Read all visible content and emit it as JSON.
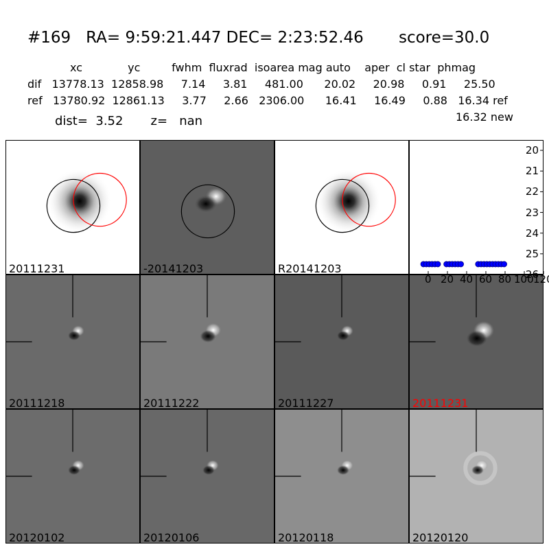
{
  "header": {
    "title": "#169   RA= 9:59:21.447 DEC= 2:23:52.46       score=30.0",
    "columns": "xc             yc         fwhm  fluxrad  isoarea mag auto    aper  cl star  phmag",
    "dif_row": "dif   13778.13  12858.98     7.14     3.81     481.00      20.02     20.98     0.91     25.50",
    "ref_row": "ref   13780.92  12861.13     3.77     2.66   2306.00      16.41     16.49     0.88   16.34 ref",
    "new_line": "16.32 new",
    "dist_line": "dist=  3.52       z=   nan"
  },
  "top_panels": [
    {
      "label": "20111231",
      "bg": "#ffffff",
      "blob": "dark"
    },
    {
      "label": "-20141203",
      "bg": "#5e5e5e",
      "blob": "dipole"
    },
    {
      "label": "R20141203",
      "bg": "#ffffff",
      "blob": "dark"
    }
  ],
  "grid_panels": [
    {
      "label": "20111218",
      "bg": "#6a6a6a",
      "highlight": false
    },
    {
      "label": "20111222",
      "bg": "#7a7a7a",
      "highlight": false
    },
    {
      "label": "20111227",
      "bg": "#5a5a5a",
      "highlight": false
    },
    {
      "label": "20111231",
      "bg": "#5c5c5c",
      "highlight": true
    },
    {
      "label": "20120102",
      "bg": "#6c6c6c",
      "highlight": false
    },
    {
      "label": "20120106",
      "bg": "#686868",
      "highlight": false
    },
    {
      "label": "20120118",
      "bg": "#8e8e8e",
      "highlight": false
    },
    {
      "label": "20120120",
      "bg": "#b2b2b2",
      "highlight": false
    }
  ],
  "colors": {
    "highlight_label": "#ff0000",
    "marker": "#0000ff",
    "circle_red": "#ff0000",
    "circle_black": "#000000"
  },
  "chart_data": {
    "type": "scatter",
    "x": [
      -5,
      -2,
      1,
      4,
      7,
      10,
      19,
      22,
      25,
      28,
      31,
      34,
      52,
      55,
      58,
      61,
      64,
      67,
      70,
      73,
      76,
      79
    ],
    "y": [
      25.5,
      25.5,
      25.5,
      25.5,
      25.5,
      25.5,
      25.5,
      25.5,
      25.5,
      25.5,
      25.5,
      25.5,
      25.5,
      25.5,
      25.5,
      25.5,
      25.5,
      25.5,
      25.5,
      25.5,
      25.5,
      25.5
    ],
    "xlim": [
      -20,
      120
    ],
    "ylim": [
      26,
      19.5
    ],
    "xticks": [
      0,
      20,
      40,
      60,
      80,
      100,
      120
    ],
    "yticks": [
      20,
      21,
      22,
      23,
      24,
      25,
      26
    ],
    "title": "",
    "xlabel": "",
    "ylabel": ""
  }
}
